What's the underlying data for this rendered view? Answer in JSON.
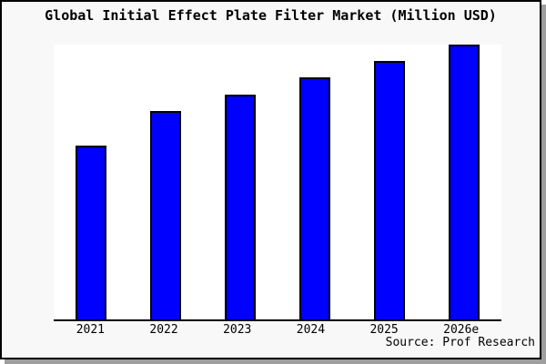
{
  "colors": {
    "bar_fill": "#0000ff",
    "bar_outline": "#000000",
    "plot_background": "#ffffff",
    "canvas_background": "#f8f8f8",
    "frame_border": "#000000",
    "frame_shadow": "#9e9e9e",
    "text": "#000000"
  },
  "chart_data": {
    "type": "bar",
    "title": "Global Initial Effect Plate Filter Market (Million USD)",
    "categories": [
      "2021",
      "2022",
      "2023",
      "2024",
      "2025",
      "2026e"
    ],
    "values": [
      62.5,
      75,
      81,
      87.5,
      93.5,
      99.5
    ],
    "xlabel": "",
    "ylabel": "",
    "ylim": [
      0,
      100
    ],
    "grid": false,
    "legend": false,
    "y_axis_ticks_visible": false,
    "source": "Source: Prof Research"
  }
}
